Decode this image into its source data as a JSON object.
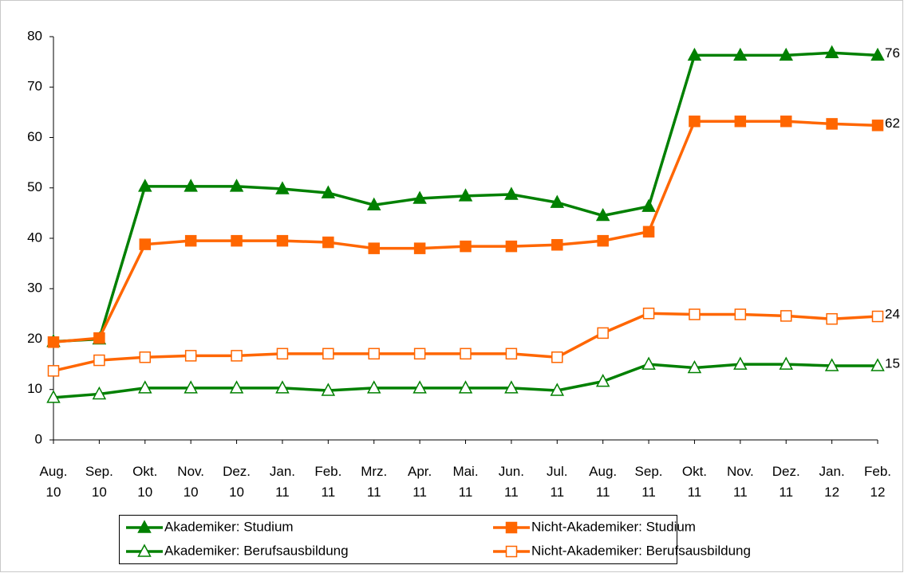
{
  "chart_data": {
    "type": "line",
    "categories": [
      "Aug.\n10",
      "Sep.\n10",
      "Okt.\n10",
      "Nov.\n10",
      "Dez.\n10",
      "Jan.\n11",
      "Feb.\n11",
      "Mrz.\n11",
      "Apr.\n11",
      "Mai.\n11",
      "Jun.\n11",
      "Jul.\n11",
      "Aug.\n11",
      "Sep.\n11",
      "Okt.\n11",
      "Nov.\n11",
      "Dez.\n11",
      "Jan.\n12",
      "Feb.\n12"
    ],
    "ylim": [
      0,
      80
    ],
    "yticks": [
      0,
      10,
      20,
      30,
      40,
      50,
      60,
      70,
      80
    ],
    "series": [
      {
        "name": "Akademiker: Studium",
        "color": "#008000",
        "marker": "triangle",
        "filled": true,
        "values": [
          19.5,
          20,
          50.3,
          50.3,
          50.3,
          49.8,
          49,
          46.6,
          47.9,
          48.4,
          48.7,
          47.1,
          44.5,
          46.3,
          76.3,
          76.3,
          76.3,
          76.8,
          76.3
        ],
        "value_labels": [
          null,
          null,
          null,
          null,
          null,
          null,
          null,
          null,
          null,
          null,
          null,
          null,
          null,
          null,
          null,
          null,
          null,
          null,
          "76"
        ]
      },
      {
        "name": "Nicht-Akademiker: Studium",
        "color": "#ff6600",
        "marker": "square",
        "filled": true,
        "values": [
          19.4,
          20.2,
          38.8,
          39.5,
          39.5,
          39.5,
          39.2,
          38,
          38,
          38.4,
          38.4,
          38.7,
          39.5,
          41.3,
          63.2,
          63.2,
          63.2,
          62.7,
          62.4
        ],
        "value_labels": [
          null,
          null,
          null,
          null,
          null,
          null,
          null,
          null,
          null,
          null,
          null,
          null,
          null,
          null,
          null,
          null,
          null,
          null,
          "62"
        ]
      },
      {
        "name": "Akademiker: Berufsausbildung",
        "color": "#008000",
        "marker": "triangle",
        "filled": false,
        "values": [
          8.4,
          9.1,
          10.3,
          10.3,
          10.3,
          10.3,
          9.8,
          10.3,
          10.3,
          10.3,
          10.3,
          9.8,
          11.6,
          15,
          14.3,
          15,
          15,
          14.7,
          14.7
        ],
        "value_labels": [
          null,
          null,
          null,
          null,
          null,
          null,
          null,
          null,
          null,
          null,
          null,
          null,
          null,
          null,
          null,
          null,
          null,
          null,
          "15"
        ]
      },
      {
        "name": "Nicht-Akademiker: Berufsausbildung",
        "color": "#ff6600",
        "marker": "square",
        "filled": false,
        "values": [
          13.7,
          15.8,
          16.4,
          16.7,
          16.7,
          17.1,
          17.1,
          17.1,
          17.1,
          17.1,
          17.1,
          16.4,
          21.2,
          25.1,
          24.9,
          24.9,
          24.6,
          24,
          24.5
        ],
        "value_labels": [
          null,
          null,
          null,
          null,
          null,
          null,
          null,
          null,
          null,
          null,
          null,
          null,
          null,
          null,
          null,
          null,
          null,
          null,
          "24"
        ]
      }
    ],
    "legend": "bottom"
  }
}
